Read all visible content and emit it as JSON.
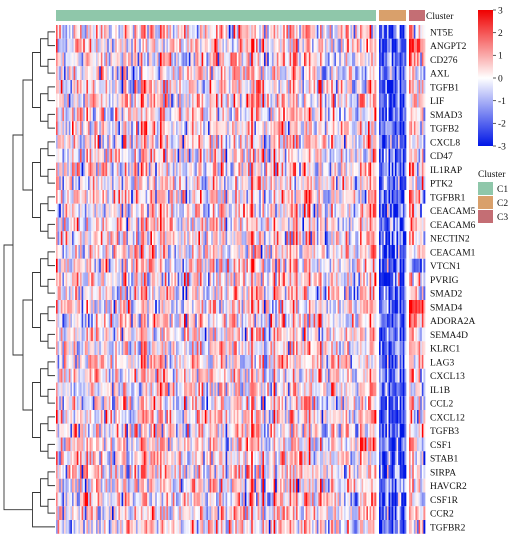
{
  "chart_data": {
    "type": "heatmap",
    "title": "",
    "rows": [
      "NT5E",
      "ANGPT2",
      "CD276",
      "AXL",
      "TGFB1",
      "LIF",
      "SMAD3",
      "TGFB2",
      "CXCL8",
      "CD47",
      "IL1RAP",
      "PTK2",
      "TGFBR1",
      "CEACAM5",
      "CEACAM6",
      "NECTIN2",
      "CEACAM1",
      "VTCN1",
      "PVRIG",
      "SMAD2",
      "SMAD4",
      "ADORA2A",
      "SEMA4D",
      "KLRC1",
      "LAG3",
      "CXCL13",
      "IL1B",
      "CCL2",
      "CXCL12",
      "TGFB3",
      "CSF1",
      "STAB1",
      "SIRPA",
      "HAVCR2",
      "CSF1R",
      "CCR2",
      "TGFBR2"
    ],
    "column_annotation": {
      "title": "Cluster",
      "groups": [
        {
          "name": "C1",
          "color": "#8fc7aa",
          "n_columns": 200
        },
        {
          "name": "C2",
          "color": "#d9a06b",
          "n_columns": 17
        },
        {
          "name": "C3",
          "color": "#c46e74",
          "n_columns": 10
        }
      ]
    },
    "color_scale": {
      "min": -3,
      "max": 3,
      "ticks": [
        3,
        2,
        1,
        0,
        -1,
        -2,
        -3
      ],
      "colors": [
        "#0016e6",
        "#ffffff",
        "#f00000"
      ]
    },
    "legend_title": "Cluster",
    "dendrogram": "rows"
  }
}
